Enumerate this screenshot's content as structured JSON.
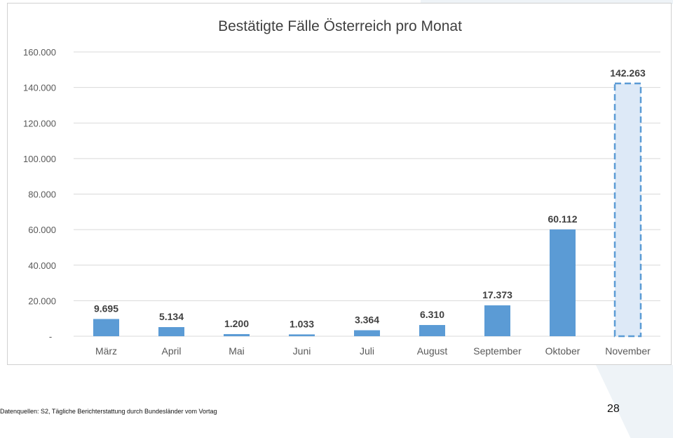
{
  "chart_data": {
    "type": "bar",
    "title": "Bestätigte Fälle Österreich pro Monat",
    "categories": [
      "März",
      "April",
      "Mai",
      "Juni",
      "Juli",
      "August",
      "September",
      "Oktober",
      "November"
    ],
    "values": [
      9695,
      5134,
      1200,
      1033,
      3364,
      6310,
      17373,
      60112,
      142263
    ],
    "data_labels": [
      "9.695",
      "5.134",
      "1.200",
      "1.033",
      "3.364",
      "6.310",
      "17.373",
      "60.112",
      "142.263"
    ],
    "ylim": [
      0,
      160000
    ],
    "yticks": [
      0,
      20000,
      40000,
      60000,
      80000,
      100000,
      120000,
      140000,
      160000
    ],
    "ytick_labels": [
      "-",
      "20.000",
      "40.000",
      "60.000",
      "80.000",
      "100.000",
      "120.000",
      "140.000",
      "160.000"
    ],
    "grid": true,
    "bar_color": "#5b9bd5",
    "highlight_fill": "#dde9f7",
    "highlight_note": "November bar drawn dashed outline"
  },
  "footer": {
    "source": "Datenquellen: S2, Tägliche Berichterstattung durch Bundesländer vom Vortag",
    "page_number": "28"
  }
}
